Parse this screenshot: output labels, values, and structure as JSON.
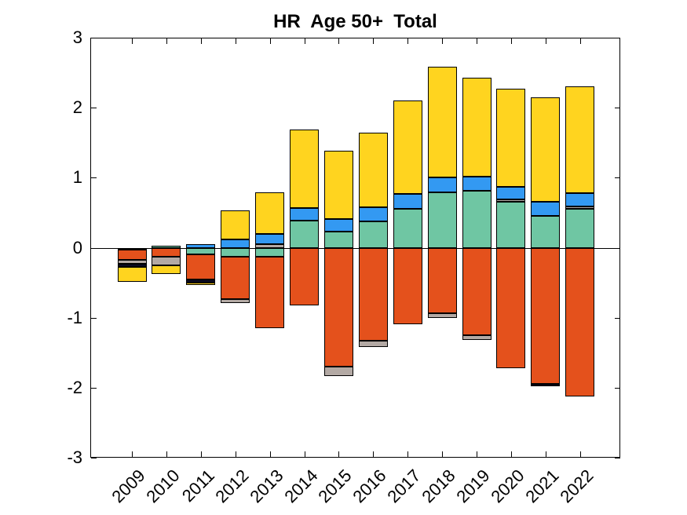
{
  "title": "HR  Age 50+  Total",
  "chart_data": {
    "type": "bar",
    "stacked": true,
    "title": "HR  Age 50+  Total",
    "categories": [
      "2009",
      "2010",
      "2011",
      "2012",
      "2013",
      "2014",
      "2015",
      "2016",
      "2017",
      "2018",
      "2019",
      "2020",
      "2021",
      "2022"
    ],
    "series": [
      {
        "name": "teal",
        "color": "#6FC6A3",
        "values": [
          -0.03,
          0.03,
          -0.1,
          -0.13,
          -0.13,
          0.39,
          0.235,
          0.375,
          0.55,
          0.795,
          0.81,
          0.66,
          0.45,
          0.55
        ]
      },
      {
        "name": "orange",
        "color": "#E4511C",
        "values": [
          -0.145,
          -0.13,
          -0.35,
          -0.6,
          -1.02,
          -0.82,
          -1.7,
          -1.33,
          -1.09,
          -0.94,
          -1.25,
          -1.72,
          -1.95,
          -2.13
        ]
      },
      {
        "name": "gray",
        "color": "#B3A9A4",
        "values": [
          -0.055,
          -0.12,
          0.0,
          -0.06,
          0.05,
          0.0,
          -0.13,
          -0.09,
          0.0,
          -0.06,
          -0.07,
          0.035,
          0.0,
          0.04
        ]
      },
      {
        "name": "dark-navy",
        "color": "#0A0A23",
        "values": [
          -0.04,
          0.0,
          -0.045,
          0.0,
          0.0,
          0.0,
          0.0,
          0.0,
          0.0,
          0.0,
          0.0,
          0.0,
          -0.03,
          0.0
        ]
      },
      {
        "name": "blue",
        "color": "#3399F2",
        "values": [
          0.0,
          0.0,
          0.05,
          0.12,
          0.145,
          0.18,
          0.175,
          0.2,
          0.22,
          0.205,
          0.2,
          0.175,
          0.21,
          0.19
        ]
      },
      {
        "name": "yellow",
        "color": "#FFD41F",
        "values": [
          -0.22,
          -0.13,
          -0.035,
          0.41,
          0.595,
          1.12,
          0.98,
          1.065,
          1.33,
          1.58,
          1.42,
          1.4,
          1.49,
          1.53
        ]
      }
    ],
    "ylim": [
      -3,
      3
    ],
    "yticks": [
      -3,
      -2,
      -1,
      0,
      1,
      2,
      3
    ],
    "xtick_angle": 45,
    "grid": false,
    "legend": null,
    "axis_color": "#000000",
    "background_color": "#FFFFFF"
  }
}
